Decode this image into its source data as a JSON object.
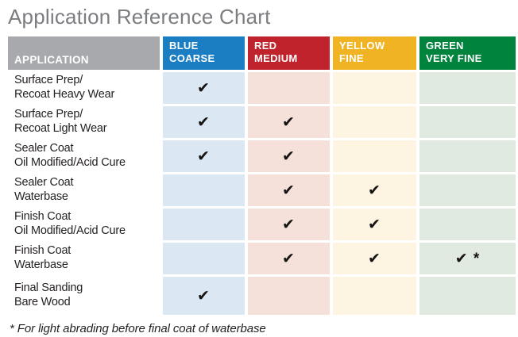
{
  "chart_data": {
    "type": "table",
    "title": "Application Reference Chart",
    "application_header": "APPLICATION",
    "columns": [
      {
        "name": "blue-coarse",
        "label_line1": "BLUE",
        "label_line2": "COARSE",
        "header_color": "#1b7ec2",
        "cell_color": "#dbe8f3"
      },
      {
        "name": "red-medium",
        "label_line1": "RED",
        "label_line2": "MEDIUM",
        "header_color": "#c0232c",
        "cell_color": "#f6e1da"
      },
      {
        "name": "yellow-fine",
        "label_line1": "YELLOW",
        "label_line2": "FINE",
        "header_color": "#f0b323",
        "cell_color": "#fdf4e2"
      },
      {
        "name": "green-very-fine",
        "label_line1": "GREEN",
        "label_line2": "VERY FINE",
        "header_color": "#00843d",
        "cell_color": "#e0eae1"
      }
    ],
    "rows": [
      {
        "label": [
          "Surface Prep/",
          "Recoat Heavy Wear"
        ],
        "cells": [
          "✔",
          "",
          "",
          ""
        ]
      },
      {
        "label": [
          "Surface Prep/",
          "Recoat Light Wear"
        ],
        "cells": [
          "✔",
          "✔",
          "",
          ""
        ]
      },
      {
        "label": [
          "Sealer Coat",
          "Oil Modified/Acid Cure"
        ],
        "cells": [
          "✔",
          "✔",
          "",
          ""
        ]
      },
      {
        "label": [
          "Sealer Coat",
          "Waterbase"
        ],
        "cells": [
          "",
          "✔",
          "✔",
          ""
        ]
      },
      {
        "label": [
          "Finish Coat",
          "Oil Modified/Acid Cure"
        ],
        "cells": [
          "",
          "✔",
          "✔",
          ""
        ]
      },
      {
        "label": [
          "Finish Coat",
          "Waterbase"
        ],
        "cells": [
          "",
          "✔",
          "✔",
          "✔ *"
        ]
      },
      {
        "label": [
          "Final Sanding",
          "Bare Wood"
        ],
        "cells": [
          "✔",
          "",
          "",
          ""
        ]
      }
    ],
    "footnote": "* For light abrading before final coat of waterbase",
    "colors": {
      "application_header_bg": "#a7a9ac",
      "title_text": "#7b7d80",
      "check": "#161412"
    }
  }
}
